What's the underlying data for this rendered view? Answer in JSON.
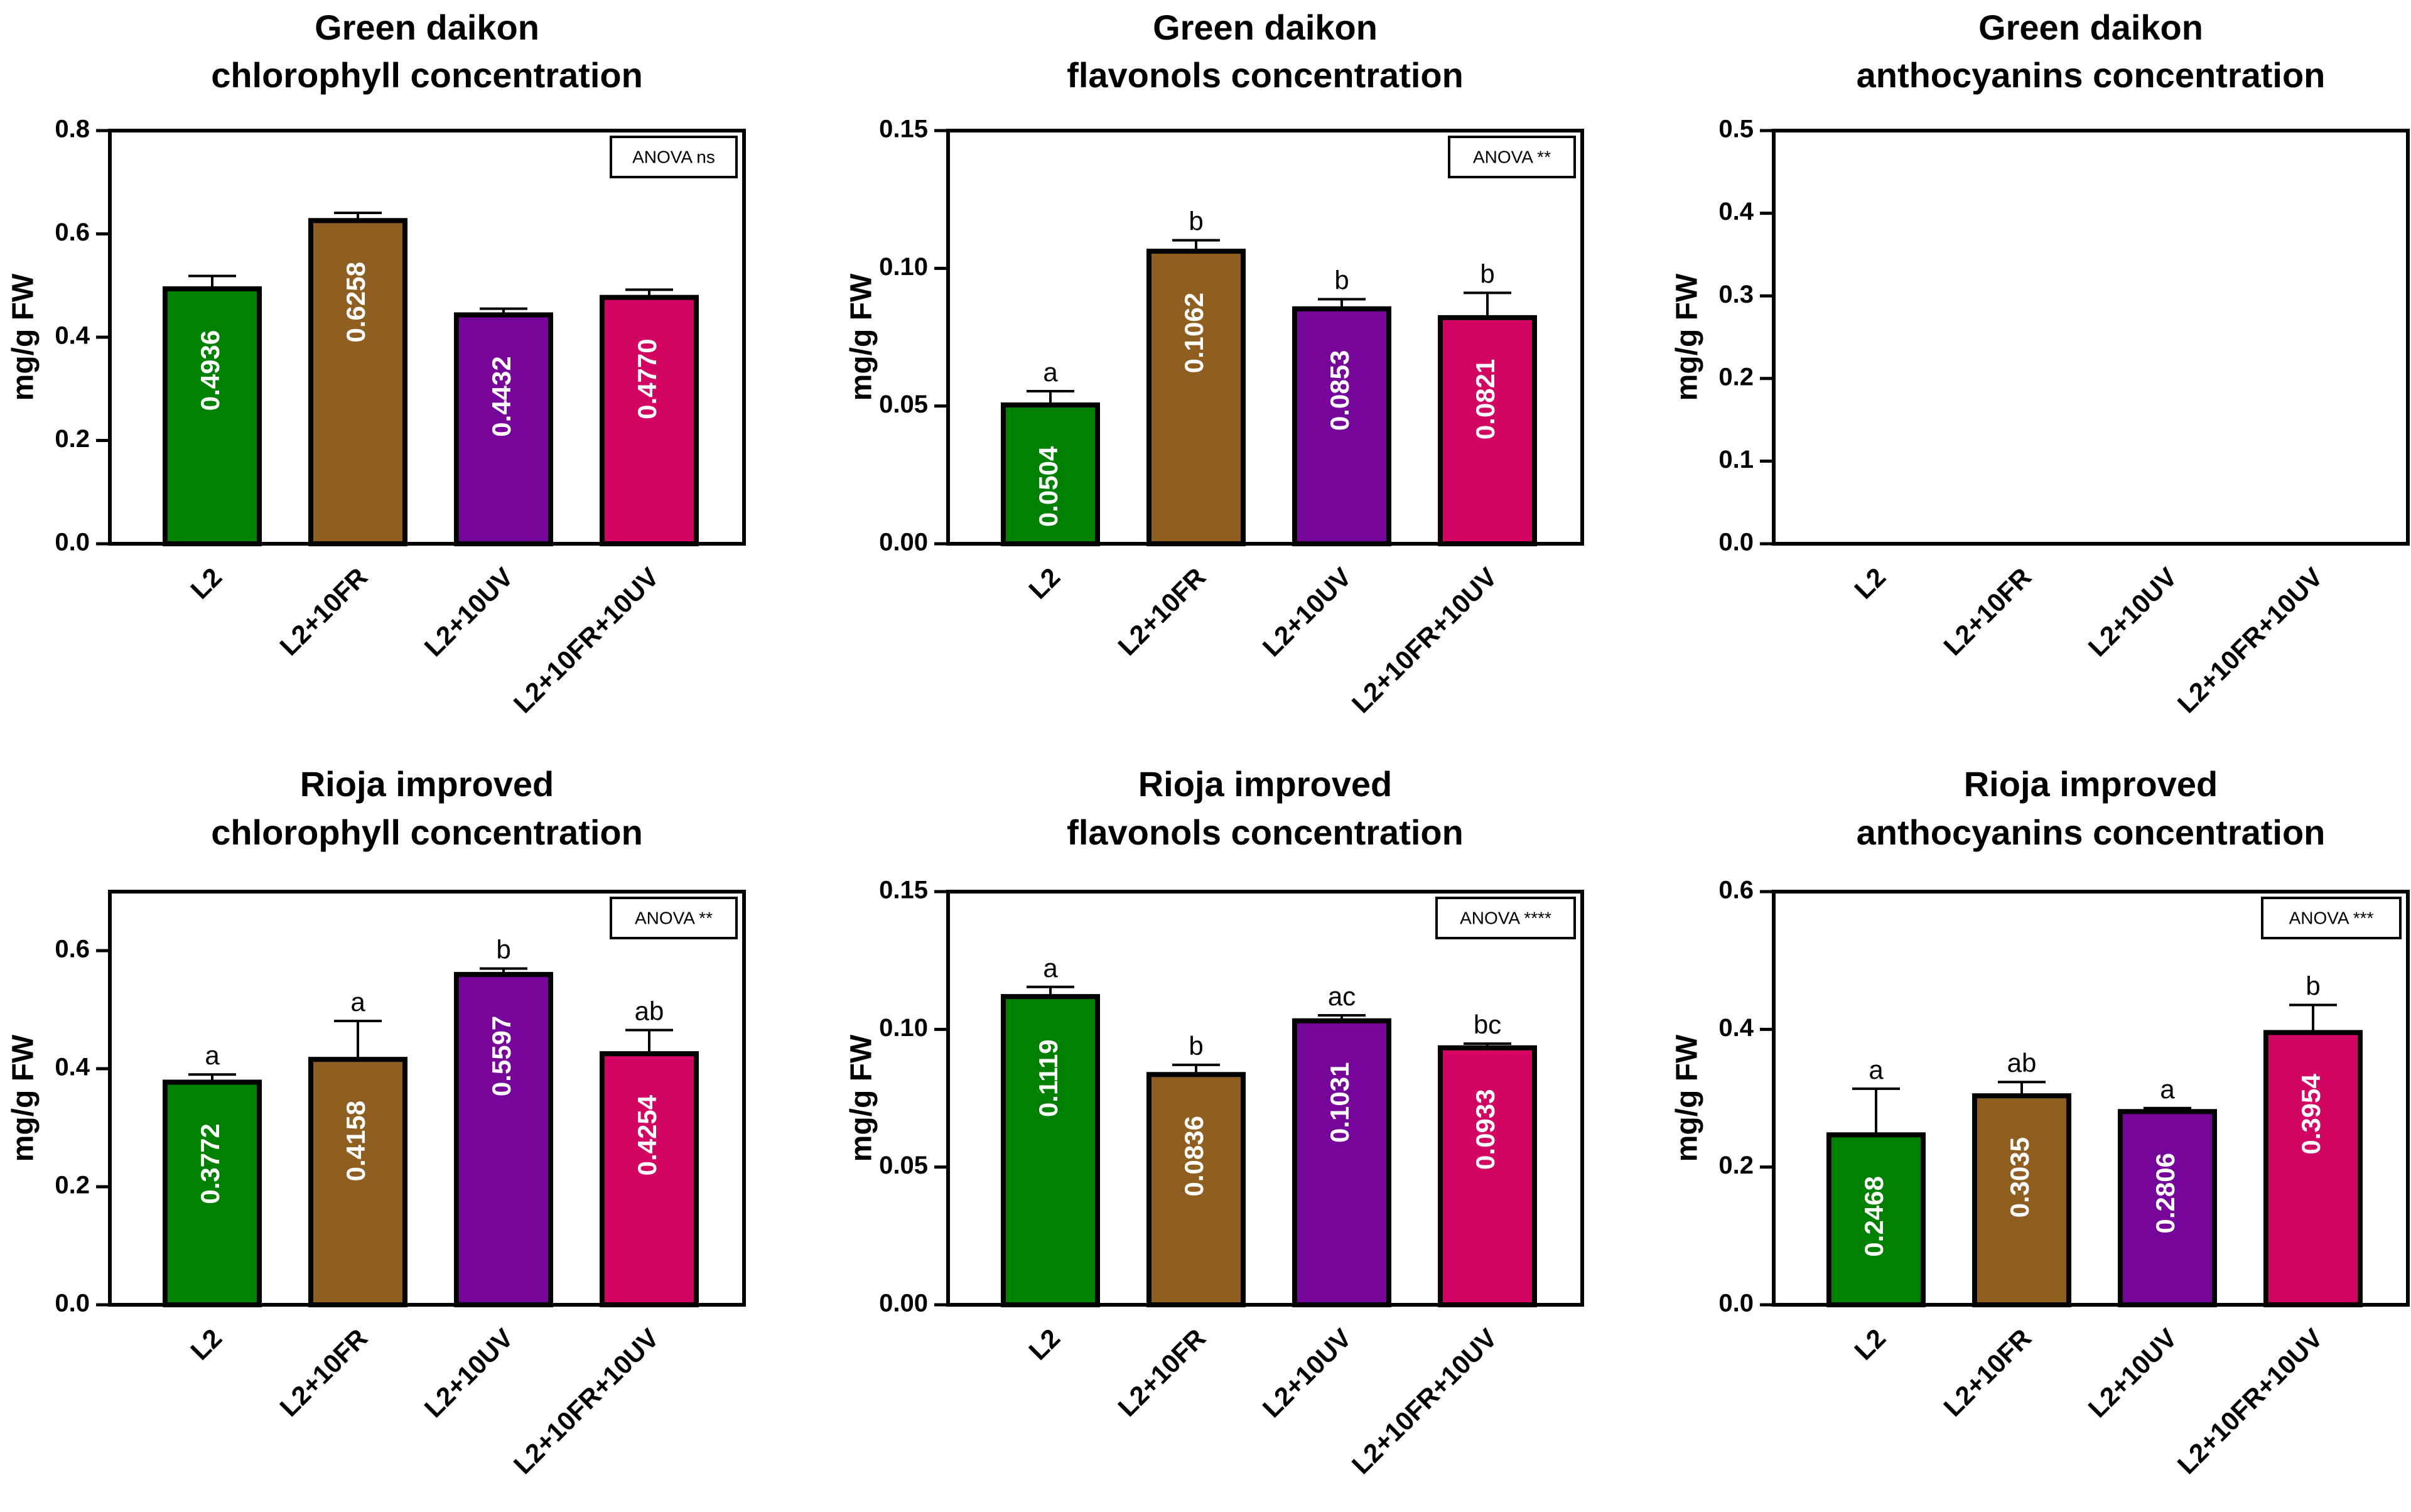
{
  "colors": {
    "L2": "#008000",
    "L2+10FR": "#8f5f22",
    "L2+10UV": "#76069a",
    "L2+10FR+10UV": "#d30562",
    "axis": "#000000",
    "background": "#ffffff"
  },
  "chart_data": [
    {
      "id": "gd-chl",
      "type": "bar",
      "title_lines": [
        "Green daikon",
        "chlorophyll concentration"
      ],
      "ylabel": "mg/g FW",
      "ylim": [
        0,
        0.8
      ],
      "yticks": [
        0.0,
        0.2,
        0.4,
        0.6,
        0.8
      ],
      "ytick_labels": [
        "0.0",
        "0.2",
        "0.4",
        "0.6",
        "0.8"
      ],
      "categories": [
        "L2",
        "L2+10FR",
        "L2+10UV",
        "L2+10FR+10UV"
      ],
      "values": [
        0.4936,
        0.6258,
        0.4432,
        0.477
      ],
      "value_labels": [
        "0.4936",
        "0.6258",
        "0.4432",
        "0.4770"
      ],
      "errors": [
        0.025,
        0.015,
        0.012,
        0.015
      ],
      "letters": [
        "",
        "",
        "",
        ""
      ],
      "anova": "ANOVA ns"
    },
    {
      "id": "gd-flav",
      "type": "bar",
      "title_lines": [
        "Green daikon",
        "flavonols concentration"
      ],
      "ylabel": "mg/g FW",
      "ylim": [
        0,
        0.15
      ],
      "yticks": [
        0.0,
        0.05,
        0.1,
        0.15
      ],
      "ytick_labels": [
        "0.00",
        "0.05",
        "0.10",
        "0.15"
      ],
      "categories": [
        "L2",
        "L2+10FR",
        "L2+10UV",
        "L2+10FR+10UV"
      ],
      "values": [
        0.0504,
        0.1062,
        0.0853,
        0.0821
      ],
      "value_labels": [
        "0.0504",
        "0.1062",
        "0.0853",
        "0.0821"
      ],
      "errors": [
        0.005,
        0.004,
        0.0035,
        0.009
      ],
      "letters": [
        "a",
        "b",
        "b",
        "b"
      ],
      "anova": "ANOVA **"
    },
    {
      "id": "gd-anth",
      "type": "bar",
      "title_lines": [
        "Green daikon",
        "anthocyanins concentration"
      ],
      "ylabel": "mg/g FW",
      "ylim": [
        0,
        0.5
      ],
      "yticks": [
        0.0,
        0.1,
        0.2,
        0.3,
        0.4,
        0.5
      ],
      "ytick_labels": [
        "0.0",
        "0.1",
        "0.2",
        "0.3",
        "0.4",
        "0.5"
      ],
      "categories": [
        "L2",
        "L2+10FR",
        "L2+10UV",
        "L2+10FR+10UV"
      ],
      "values": [
        0,
        0,
        0,
        0
      ],
      "value_labels": [
        "",
        "",
        "",
        ""
      ],
      "errors": [
        0,
        0,
        0,
        0
      ],
      "letters": [
        "",
        "",
        "",
        ""
      ],
      "anova": ""
    },
    {
      "id": "ri-chl",
      "type": "bar",
      "title_lines": [
        "Rioja improved",
        "chlorophyll concentration"
      ],
      "ylabel": "mg/g FW",
      "ylim": [
        0,
        0.7
      ],
      "yticks": [
        0.0,
        0.2,
        0.4,
        0.6
      ],
      "ytick_labels": [
        "0.0",
        "0.2",
        "0.4",
        "0.6"
      ],
      "categories": [
        "L2",
        "L2+10FR",
        "L2+10UV",
        "L2+10FR+10UV"
      ],
      "values": [
        0.3772,
        0.4158,
        0.5597,
        0.4254
      ],
      "value_labels": [
        "0.3772",
        "0.4158",
        "0.5597",
        "0.4254"
      ],
      "errors": [
        0.013,
        0.065,
        0.01,
        0.04
      ],
      "letters": [
        "a",
        "a",
        "b",
        "ab"
      ],
      "anova": "ANOVA **"
    },
    {
      "id": "ri-flav",
      "type": "bar",
      "title_lines": [
        "Rioja improved",
        "flavonols concentration"
      ],
      "ylabel": "mg/g FW",
      "ylim": [
        0,
        0.15
      ],
      "yticks": [
        0.0,
        0.05,
        0.1,
        0.15
      ],
      "ytick_labels": [
        "0.00",
        "0.05",
        "0.10",
        "0.15"
      ],
      "categories": [
        "L2",
        "L2+10FR",
        "L2+10UV",
        "L2+10FR+10UV"
      ],
      "values": [
        0.1119,
        0.0836,
        0.1031,
        0.0933
      ],
      "value_labels": [
        "0.1119",
        "0.0836",
        "0.1031",
        "0.0933"
      ],
      "errors": [
        0.0035,
        0.0035,
        0.002,
        0.0015
      ],
      "letters": [
        "a",
        "b",
        "ac",
        "bc"
      ],
      "anova": "ANOVA ****"
    },
    {
      "id": "ri-anth",
      "type": "bar",
      "title_lines": [
        "Rioja improved",
        "anthocyanins concentration"
      ],
      "ylabel": "mg/g FW",
      "ylim": [
        0,
        0.6
      ],
      "yticks": [
        0.0,
        0.2,
        0.4,
        0.6
      ],
      "ytick_labels": [
        "0.0",
        "0.2",
        "0.4",
        "0.6"
      ],
      "categories": [
        "L2",
        "L2+10FR",
        "L2+10UV",
        "L2+10FR+10UV"
      ],
      "values": [
        0.2468,
        0.3035,
        0.2806,
        0.3954
      ],
      "value_labels": [
        "0.2468",
        "0.3035",
        "0.2806",
        "0.3954"
      ],
      "errors": [
        0.067,
        0.02,
        0.005,
        0.04
      ],
      "letters": [
        "a",
        "ab",
        "a",
        "b"
      ],
      "anova": "ANOVA ***"
    }
  ]
}
